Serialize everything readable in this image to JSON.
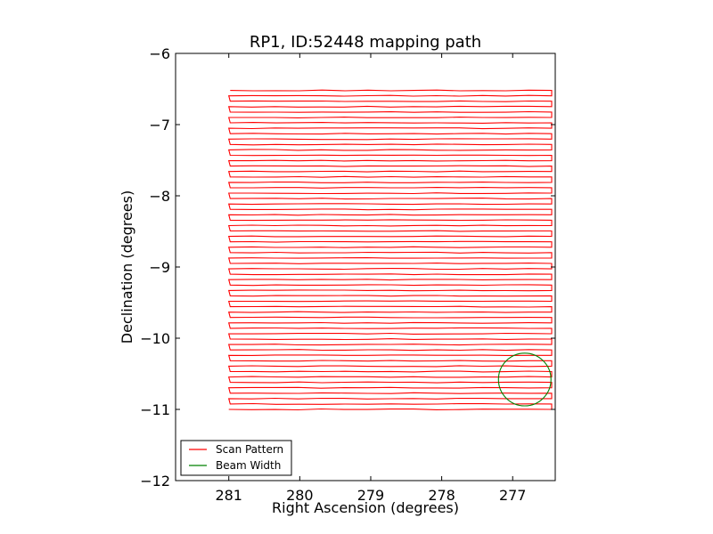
{
  "chart_data": {
    "type": "line",
    "title": "RP1, ID:52448 mapping path",
    "xlabel": "Right Ascension (degrees)",
    "ylabel": "Declination (degrees)",
    "xlim": [
      281.75,
      276.4
    ],
    "ylim": [
      -12,
      -6
    ],
    "x_inverted": true,
    "xticks": [
      281,
      280,
      279,
      278,
      277
    ],
    "xtick_labels": [
      "281",
      "280",
      "279",
      "278",
      "277"
    ],
    "yticks": [
      -12,
      -11,
      -10,
      -9,
      -8,
      -7,
      -6
    ],
    "ytick_labels": [
      "−12",
      "−11",
      "−10",
      "−9",
      "−8",
      "−7",
      "−6"
    ],
    "grid": false,
    "legend_position": "lower left",
    "series": [
      {
        "name": "Scan Pattern",
        "color": "#ff0000",
        "kind": "raster-scan",
        "ra_start": 281.0,
        "ra_end": 276.45,
        "dec_start": -11.0,
        "dec_end": -6.52,
        "row_spacing": 0.155,
        "row_count": 30
      },
      {
        "name": "Beam Width",
        "color": "#008000",
        "kind": "circle",
        "center_ra": 276.83,
        "center_dec": -10.58,
        "radius_deg": 0.37
      }
    ]
  }
}
